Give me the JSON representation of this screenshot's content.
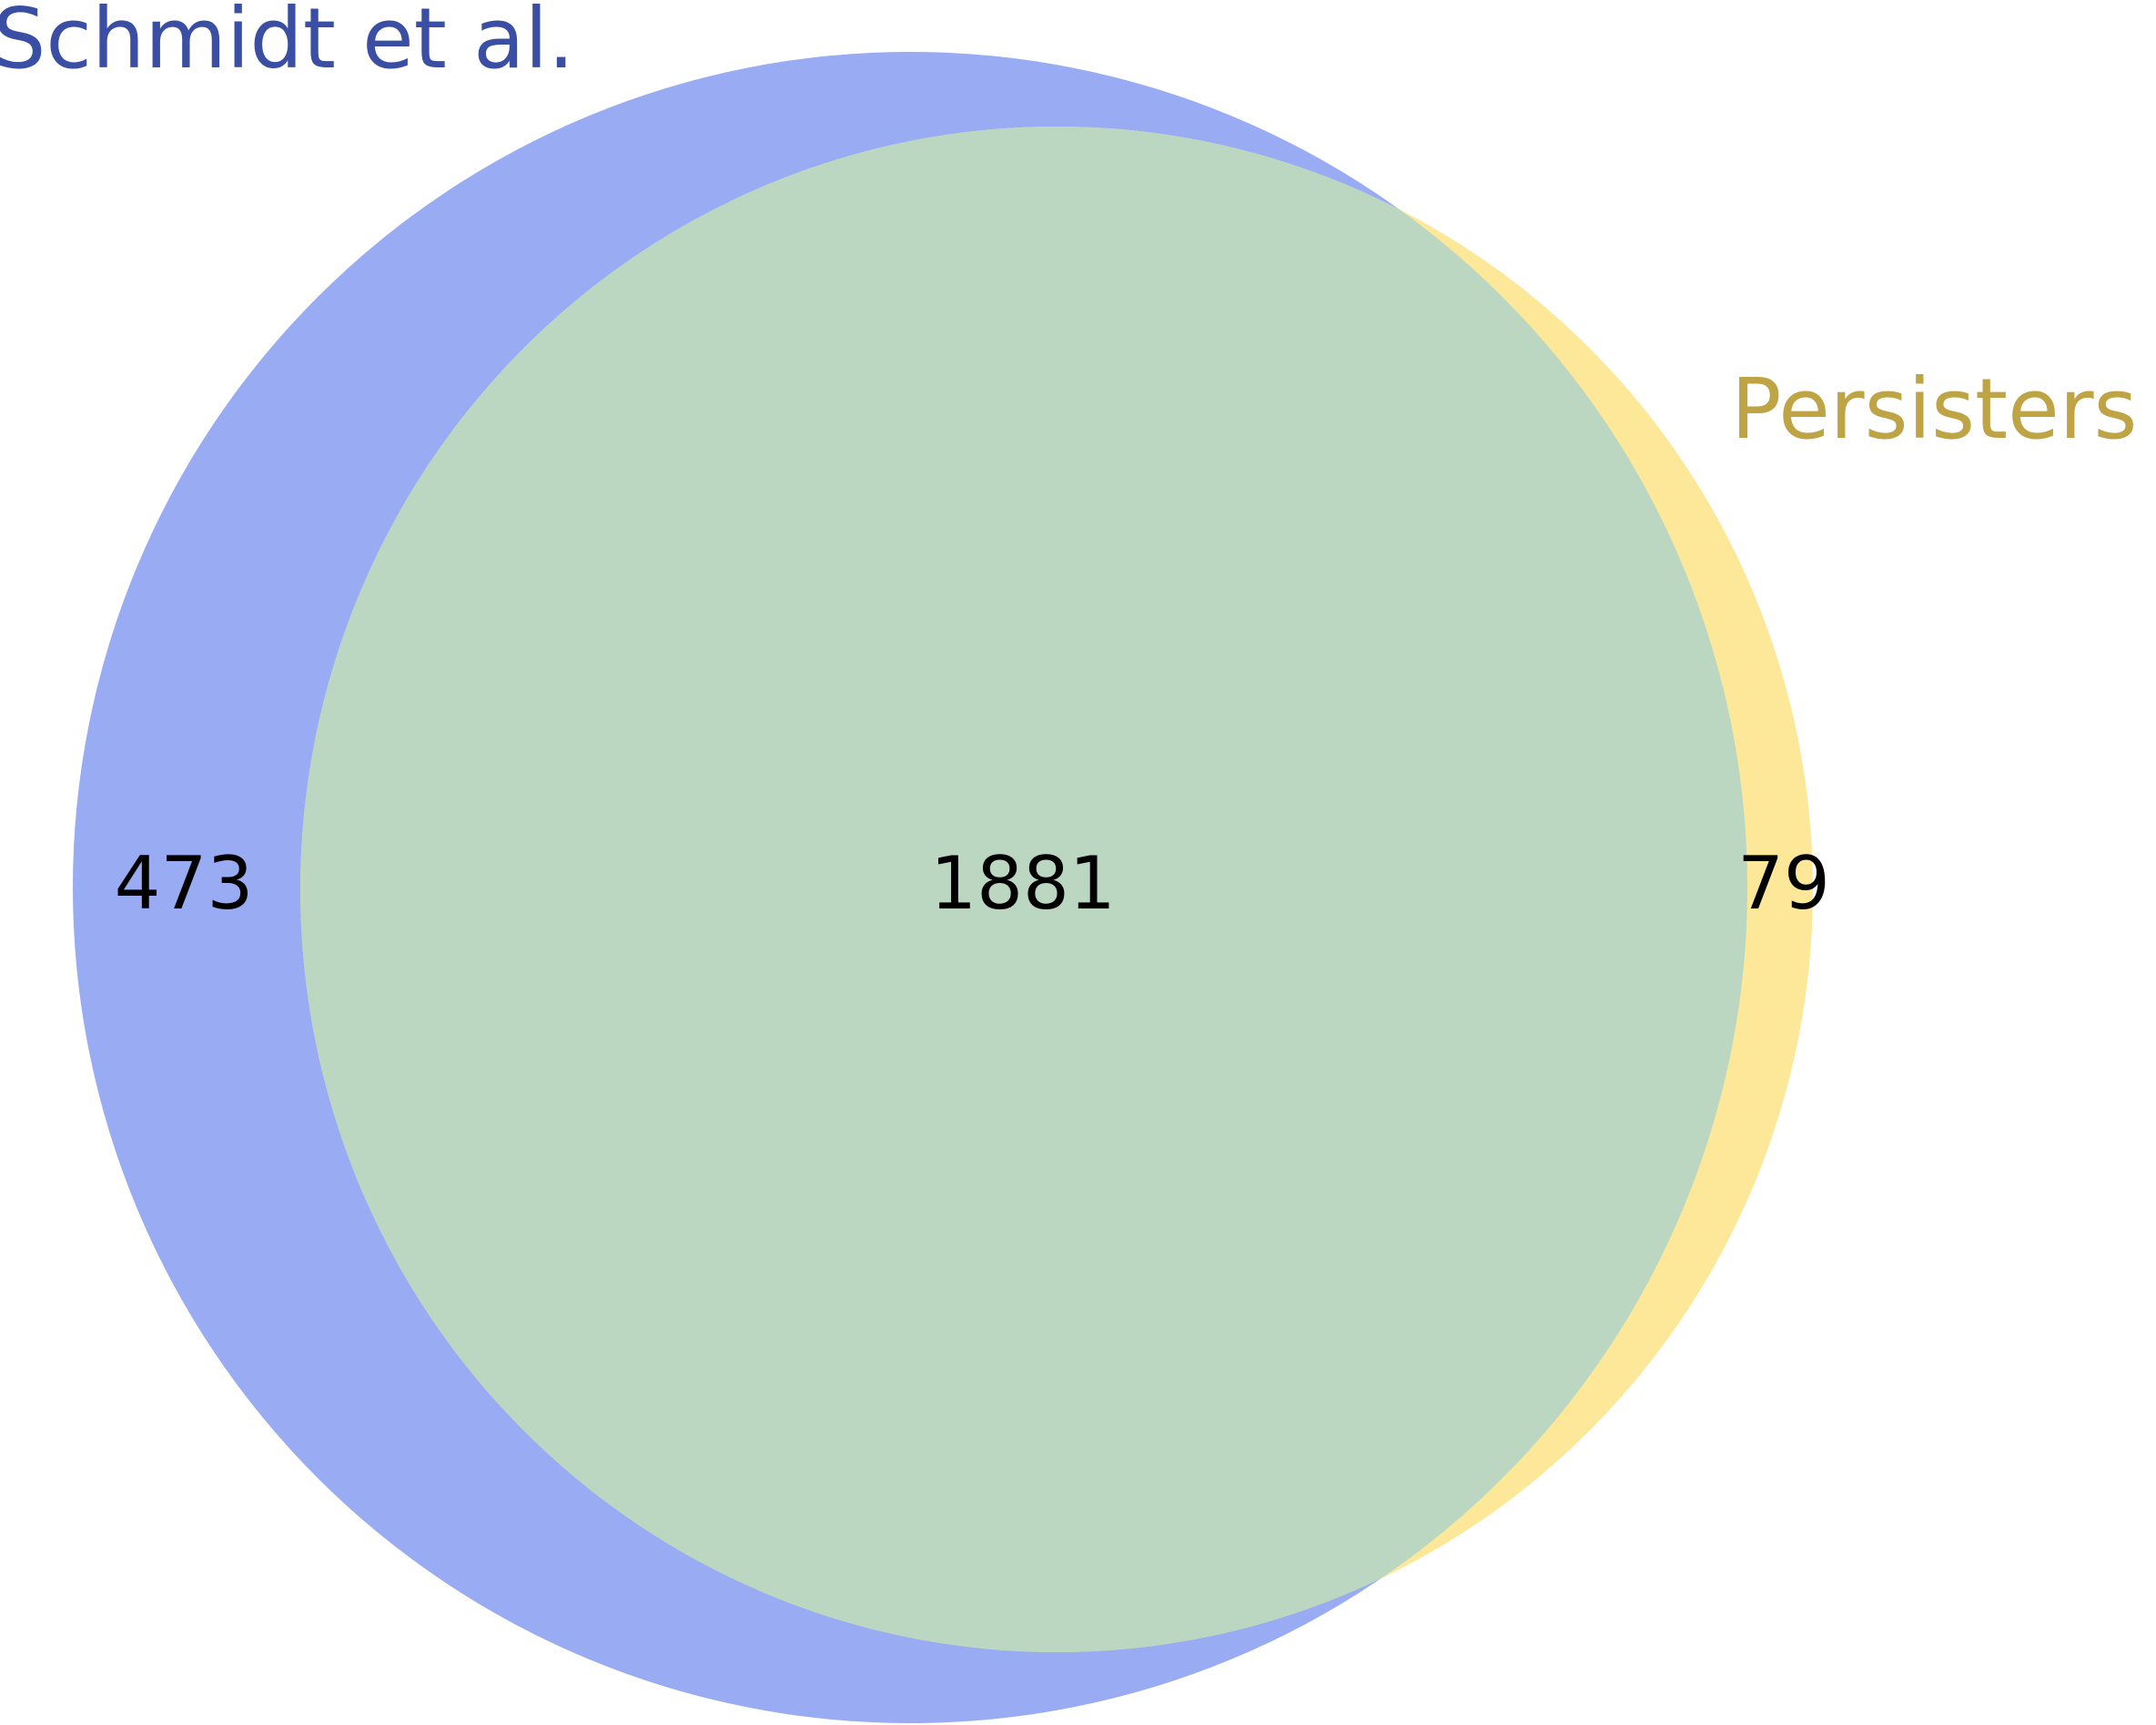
{
  "diagram": {
    "type": "venn2",
    "sets": [
      {
        "id": "A",
        "name": "Schmidt et al.",
        "label_color": "#3a4fa3",
        "fill_color": "#98abf3"
      },
      {
        "id": "B",
        "name": "Persisters",
        "label_color": "#bfa446",
        "fill_color": "#fde798"
      }
    ],
    "intersection_fill_color": "#bbd7c1",
    "counts": {
      "only_A": "473",
      "both": "1881",
      "only_B": "79"
    }
  }
}
